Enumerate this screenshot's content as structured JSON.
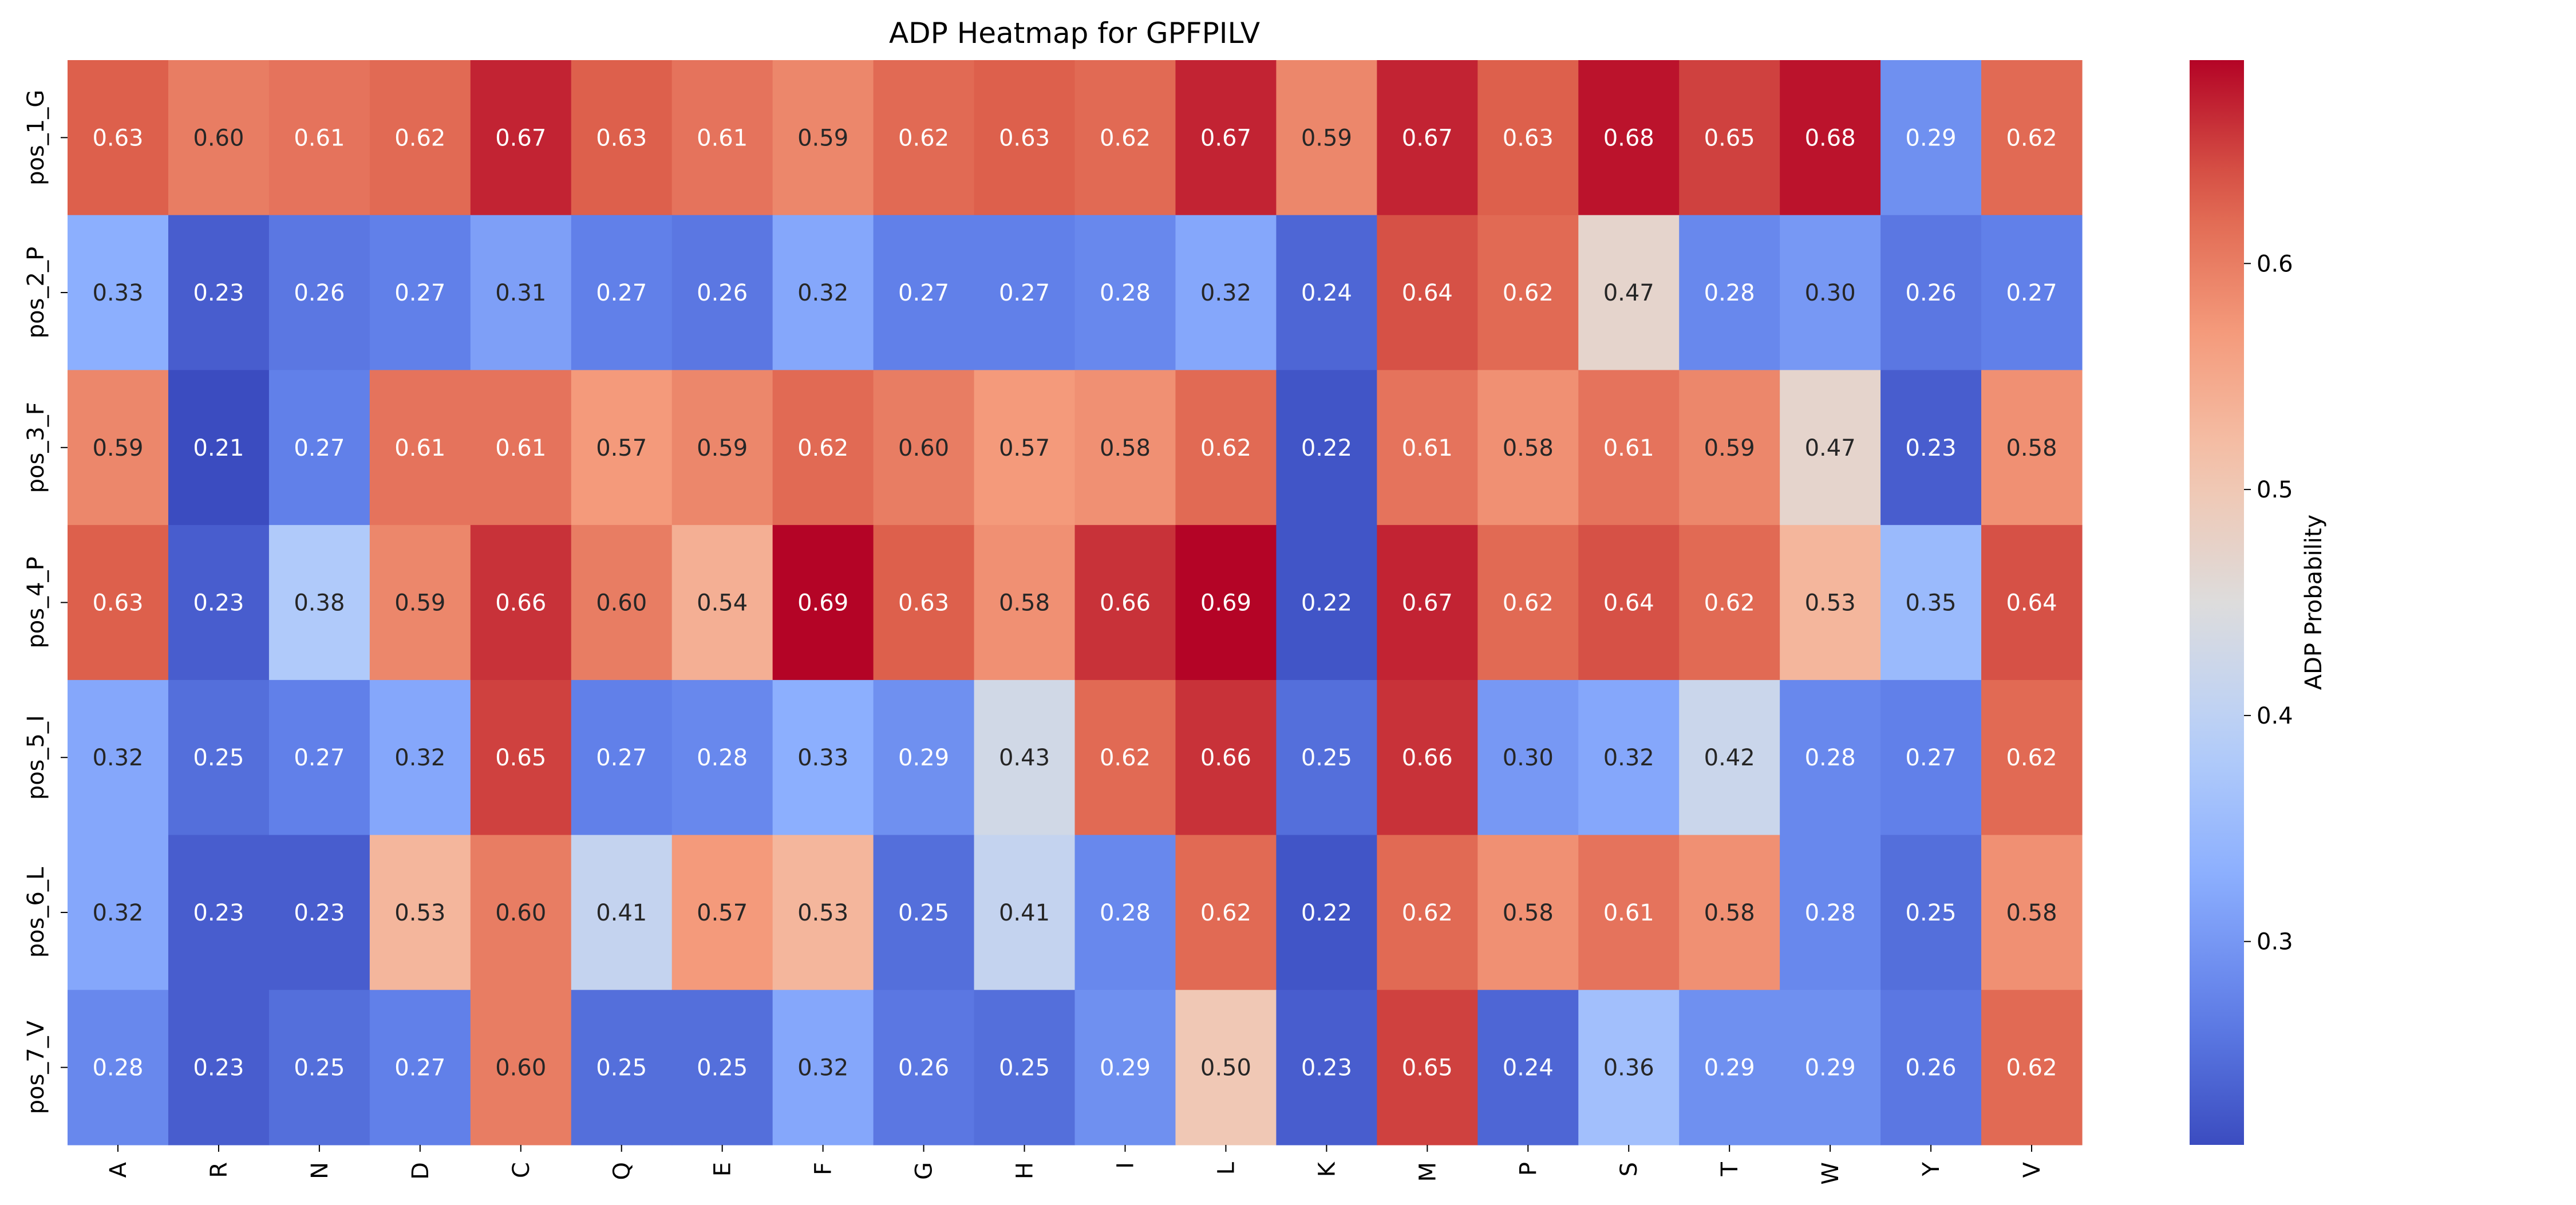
{
  "chart_data": {
    "type": "heatmap",
    "title": "ADP Heatmap for GPFPILV",
    "xlabel": "",
    "ylabel": "",
    "x_categories": [
      "A",
      "R",
      "N",
      "D",
      "C",
      "Q",
      "E",
      "F",
      "G",
      "H",
      "I",
      "L",
      "K",
      "M",
      "P",
      "S",
      "T",
      "W",
      "Y",
      "V"
    ],
    "y_categories": [
      "pos_1_G",
      "pos_2_P",
      "pos_3_F",
      "pos_4_P",
      "pos_5_I",
      "pos_6_L",
      "pos_7_V"
    ],
    "values": [
      [
        0.63,
        0.6,
        0.61,
        0.62,
        0.67,
        0.63,
        0.61,
        0.59,
        0.62,
        0.63,
        0.62,
        0.67,
        0.59,
        0.67,
        0.63,
        0.68,
        0.65,
        0.68,
        0.29,
        0.62
      ],
      [
        0.33,
        0.23,
        0.26,
        0.27,
        0.31,
        0.27,
        0.26,
        0.32,
        0.27,
        0.27,
        0.28,
        0.32,
        0.24,
        0.64,
        0.62,
        0.47,
        0.28,
        0.3,
        0.26,
        0.27
      ],
      [
        0.59,
        0.21,
        0.27,
        0.61,
        0.61,
        0.57,
        0.59,
        0.62,
        0.6,
        0.57,
        0.58,
        0.62,
        0.22,
        0.61,
        0.58,
        0.61,
        0.59,
        0.47,
        0.23,
        0.58
      ],
      [
        0.63,
        0.23,
        0.38,
        0.59,
        0.66,
        0.6,
        0.54,
        0.69,
        0.63,
        0.58,
        0.66,
        0.69,
        0.22,
        0.67,
        0.62,
        0.64,
        0.62,
        0.53,
        0.35,
        0.64
      ],
      [
        0.32,
        0.25,
        0.27,
        0.32,
        0.65,
        0.27,
        0.28,
        0.33,
        0.29,
        0.43,
        0.62,
        0.66,
        0.25,
        0.66,
        0.3,
        0.32,
        0.42,
        0.28,
        0.27,
        0.62
      ],
      [
        0.32,
        0.23,
        0.23,
        0.53,
        0.6,
        0.41,
        0.57,
        0.53,
        0.25,
        0.41,
        0.28,
        0.62,
        0.22,
        0.62,
        0.58,
        0.61,
        0.58,
        0.28,
        0.25,
        0.58
      ],
      [
        0.28,
        0.23,
        0.25,
        0.27,
        0.6,
        0.25,
        0.25,
        0.32,
        0.26,
        0.25,
        0.29,
        0.5,
        0.23,
        0.65,
        0.24,
        0.36,
        0.29,
        0.29,
        0.26,
        0.62
      ]
    ],
    "colormap": "coolwarm",
    "vmin": 0.21,
    "vmax": 0.69,
    "colorbar": {
      "label": "ADP Probability",
      "ticks": [
        0.3,
        0.4,
        0.5,
        0.6
      ],
      "tick_labels": [
        "0.3",
        "0.4",
        "0.5",
        "0.6"
      ]
    },
    "annotate": true,
    "grid": false
  }
}
